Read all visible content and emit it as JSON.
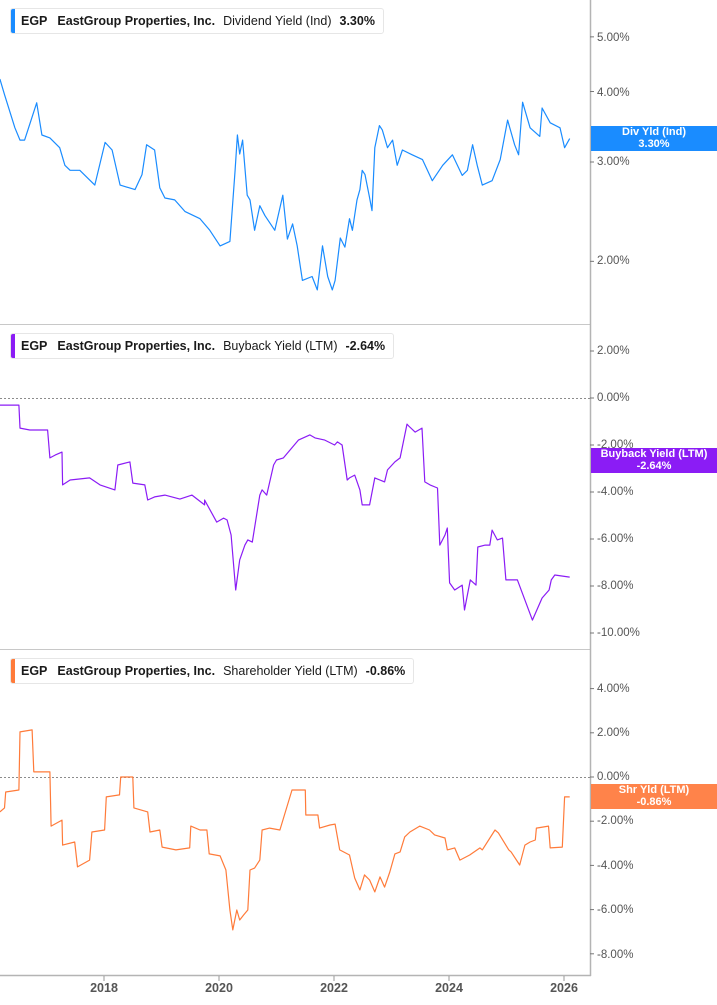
{
  "chart_data": [
    {
      "type": "line",
      "panel": 1,
      "ticker": "EGP",
      "company": "EastGroup Properties, Inc.",
      "metric": "Dividend Yield (Ind)",
      "value_label": "3.30%",
      "flag_title": "Div Yld (Ind)",
      "flag_value": "3.30%",
      "color": "#1a8cff",
      "scale": "log",
      "yticks": [
        "5.00%",
        "4.00%",
        "3.00%",
        "2.00%"
      ],
      "ytick_values": [
        5,
        4,
        3,
        2
      ],
      "series_x": [
        2016.19,
        2016.27,
        2016.45,
        2016.54,
        2016.62,
        2016.83,
        2016.92,
        2017.06,
        2017.23,
        2017.32,
        2017.41,
        2017.58,
        2017.84,
        2018.02,
        2018.14,
        2018.28,
        2018.54,
        2018.66,
        2018.74,
        2018.88,
        2018.97,
        2019.06,
        2019.23,
        2019.41,
        2019.67,
        2019.84,
        2020.02,
        2020.19,
        2020.28,
        2020.32,
        2020.36,
        2020.41,
        2020.49,
        2020.54,
        2020.62,
        2020.71,
        2020.8,
        2020.97,
        2021.11,
        2021.19,
        2021.28,
        2021.36,
        2021.45,
        2021.62,
        2021.71,
        2021.8,
        2021.89,
        2021.97,
        2022.02,
        2022.11,
        2022.19,
        2022.27,
        2022.32,
        2022.4,
        2022.45,
        2022.49,
        2022.54,
        2022.61,
        2022.66,
        2022.71,
        2022.79,
        2022.84,
        2022.93,
        2023.02,
        2023.1,
        2023.19,
        2023.36,
        2023.54,
        2023.71,
        2023.89,
        2024.06,
        2024.23,
        2024.32,
        2024.41,
        2024.49,
        2024.58,
        2024.75,
        2024.89,
        2025.02,
        2025.14,
        2025.21,
        2025.28,
        2025.41,
        2025.58,
        2025.62,
        2025.76,
        2025.93,
        2026.01,
        2026.1
      ],
      "series_y": [
        4.21,
        3.95,
        3.45,
        3.28,
        3.28,
        3.82,
        3.35,
        3.31,
        3.18,
        2.96,
        2.9,
        2.9,
        2.73,
        3.25,
        3.15,
        2.73,
        2.68,
        2.85,
        3.22,
        3.15,
        2.7,
        2.59,
        2.57,
        2.45,
        2.38,
        2.27,
        2.13,
        2.17,
        2.9,
        3.35,
        3.1,
        3.28,
        2.62,
        2.57,
        2.27,
        2.51,
        2.41,
        2.27,
        2.62,
        2.19,
        2.33,
        2.13,
        1.85,
        1.88,
        1.78,
        2.13,
        1.88,
        1.78,
        1.85,
        2.2,
        2.12,
        2.38,
        2.27,
        2.57,
        2.68,
        2.9,
        2.85,
        2.62,
        2.46,
        3.18,
        3.48,
        3.42,
        3.18,
        3.28,
        2.96,
        3.15,
        3.09,
        3.03,
        2.78,
        2.96,
        3.09,
        2.84,
        2.9,
        3.22,
        2.96,
        2.73,
        2.78,
        3.03,
        3.56,
        3.22,
        3.09,
        3.83,
        3.45,
        3.33,
        3.74,
        3.52,
        3.45,
        3.18,
        3.3
      ]
    },
    {
      "type": "line",
      "panel": 2,
      "ticker": "EGP",
      "company": "EastGroup Properties, Inc.",
      "metric": "Buyback Yield (LTM)",
      "value_label": "-2.64%",
      "flag_title": "Buyback Yield (LTM)",
      "flag_value": "-2.64%",
      "color": "#8b1cf5",
      "scale": "linear",
      "yticks": [
        "2.00%",
        "0.00%",
        "-2.00%",
        "-4.00%",
        "-6.00%",
        "-8.00%",
        "-10.00%"
      ],
      "ytick_values": [
        2,
        0,
        -2,
        -4,
        -6,
        -8,
        -10
      ],
      "series_x": [
        2016.19,
        2016.52,
        2016.54,
        2016.71,
        2017.02,
        2017.06,
        2017.15,
        2017.27,
        2017.28,
        2017.41,
        2017.75,
        2017.93,
        2018.19,
        2018.24,
        2018.45,
        2018.5,
        2018.71,
        2018.76,
        2018.88,
        2019.06,
        2019.32,
        2019.53,
        2019.75,
        2019.75,
        2019.96,
        2020.08,
        2020.14,
        2020.21,
        2020.29,
        2020.36,
        2020.45,
        2020.5,
        2020.58,
        2020.71,
        2020.75,
        2020.83,
        2020.95,
        2021.0,
        2021.12,
        2021.38,
        2021.58,
        2021.67,
        2021.84,
        2022.01,
        2022.06,
        2022.14,
        2022.23,
        2022.27,
        2022.36,
        2022.45,
        2022.49,
        2022.62,
        2022.71,
        2022.88,
        2022.93,
        2023.06,
        2023.15,
        2023.27,
        2023.3,
        2023.41,
        2023.53,
        2023.58,
        2023.67,
        2023.8,
        2023.84,
        2023.93,
        2023.97,
        2024.01,
        2024.1,
        2024.23,
        2024.27,
        2024.37,
        2024.47,
        2024.5,
        2024.63,
        2024.71,
        2024.75,
        2024.84,
        2024.93,
        2024.99,
        2025.19,
        2025.45,
        2025.62,
        2025.74,
        2025.78,
        2025.84,
        2026.1
      ],
      "series_y": [
        -0.3,
        -0.3,
        -1.28,
        -1.36,
        -1.36,
        -2.55,
        -2.43,
        -2.3,
        -3.7,
        -3.49,
        -3.4,
        -3.7,
        -3.91,
        -2.85,
        -2.72,
        -3.62,
        -3.7,
        -4.34,
        -4.21,
        -4.13,
        -4.3,
        -4.13,
        -4.55,
        -4.34,
        -5.28,
        -5.11,
        -5.19,
        -5.83,
        -8.17,
        -6.89,
        -6.26,
        -6.04,
        -6.13,
        -4.13,
        -3.91,
        -4.13,
        -2.85,
        -2.64,
        -2.55,
        -1.79,
        -1.57,
        -1.7,
        -1.79,
        -2.0,
        -1.87,
        -2.0,
        -3.49,
        -3.4,
        -3.28,
        -3.91,
        -4.55,
        -4.55,
        -3.4,
        -3.57,
        -3.06,
        -2.72,
        -2.55,
        -1.11,
        -1.19,
        -1.45,
        -1.28,
        -3.57,
        -3.7,
        -3.83,
        -6.26,
        -5.83,
        -5.53,
        -7.87,
        -8.17,
        -7.96,
        -9.02,
        -7.74,
        -7.96,
        -6.34,
        -6.26,
        -6.26,
        -5.62,
        -6.04,
        -5.96,
        -7.74,
        -7.74,
        -9.45,
        -8.51,
        -8.17,
        -7.74,
        -7.53,
        -7.62,
        -2.64,
        -2.72
      ]
    },
    {
      "type": "line",
      "panel": 3,
      "ticker": "EGP",
      "company": "EastGroup Properties, Inc.",
      "metric": "Shareholder Yield (LTM)",
      "value_label": "-0.86%",
      "flag_title": "Shr Yld (LTM)",
      "flag_value": "-0.86%",
      "color": "#ff7b3a",
      "scale": "linear",
      "yticks": [
        "4.00%",
        "2.00%",
        "0.00%",
        "-2.00%",
        "-4.00%",
        "-6.00%",
        "-8.00%"
      ],
      "ytick_values": [
        4,
        2,
        0,
        -2,
        -4,
        -6,
        -8
      ],
      "series_x": [
        2016.19,
        2016.27,
        2016.29,
        2016.52,
        2016.54,
        2016.75,
        2016.78,
        2017.06,
        2017.08,
        2017.27,
        2017.28,
        2017.49,
        2017.54,
        2017.75,
        2017.79,
        2018.01,
        2018.04,
        2018.27,
        2018.29,
        2018.5,
        2018.52,
        2018.76,
        2018.8,
        2018.97,
        2019.01,
        2019.25,
        2019.49,
        2019.51,
        2019.67,
        2019.79,
        2019.83,
        2020.02,
        2020.12,
        2020.19,
        2020.24,
        2020.31,
        2020.36,
        2020.43,
        2020.5,
        2020.54,
        2020.62,
        2020.71,
        2020.75,
        2020.88,
        2021.06,
        2021.27,
        2021.5,
        2021.51,
        2021.72,
        2021.75,
        2021.93,
        2022.02,
        2022.1,
        2022.27,
        2022.36,
        2022.45,
        2022.53,
        2022.62,
        2022.71,
        2022.8,
        2022.88,
        2022.97,
        2023.06,
        2023.15,
        2023.23,
        2023.32,
        2023.49,
        2023.66,
        2023.75,
        2023.93,
        2023.97,
        2024.1,
        2024.19,
        2024.36,
        2024.54,
        2024.58,
        2024.8,
        2024.86,
        2025.04,
        2025.08,
        2025.23,
        2025.32,
        2025.41,
        2025.5,
        2025.52,
        2025.73,
        2025.76,
        2025.97,
        2026.01,
        2026.1
      ],
      "series_y": [
        -1.58,
        -1.4,
        -0.68,
        -0.59,
        2.04,
        2.13,
        0.23,
        0.23,
        -2.22,
        -1.95,
        -3.08,
        -2.94,
        -4.07,
        -3.76,
        -2.49,
        -2.4,
        -0.9,
        -0.81,
        0.0,
        0.0,
        -1.4,
        -1.58,
        -2.49,
        -2.4,
        -3.17,
        -3.3,
        -3.21,
        -2.22,
        -2.4,
        -2.4,
        -3.48,
        -3.57,
        -4.21,
        -6.02,
        -6.92,
        -6.02,
        -6.47,
        -6.24,
        -6.02,
        -4.21,
        -4.12,
        -3.76,
        -2.4,
        -2.31,
        -2.4,
        -0.59,
        -0.59,
        -1.72,
        -1.72,
        -2.31,
        -2.17,
        -2.13,
        -3.3,
        -3.53,
        -4.57,
        -5.11,
        -4.43,
        -4.66,
        -5.2,
        -4.52,
        -4.98,
        -4.3,
        -3.48,
        -3.39,
        -2.71,
        -2.49,
        -2.22,
        -2.4,
        -2.62,
        -2.76,
        -3.3,
        -3.21,
        -3.76,
        -3.53,
        -3.21,
        -3.3,
        -2.4,
        -2.53,
        -3.3,
        -3.39,
        -3.98,
        -3.08,
        -2.94,
        -2.85,
        -2.31,
        -2.22,
        -3.21,
        -3.17,
        -0.9,
        -0.9
      ]
    }
  ],
  "x_axis": {
    "ticks": [
      "2018",
      "2020",
      "2022",
      "2024",
      "2026"
    ],
    "tick_years": [
      2018,
      2020,
      2022,
      2024,
      2026
    ]
  }
}
